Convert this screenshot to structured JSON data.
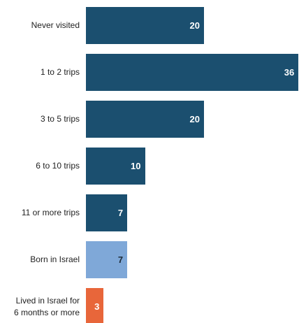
{
  "chart_data": {
    "type": "bar",
    "orientation": "horizontal",
    "categories": [
      "Never visited",
      "1 to 2 trips",
      "3 to 5 trips",
      "6 to 10 trips",
      "11 or more trips",
      "Born in Israel",
      "Lived in Israel for\n6 months or more"
    ],
    "values": [
      20,
      36,
      20,
      10,
      7,
      7,
      3
    ],
    "colors": [
      "#1b4f6f",
      "#1b4f6f",
      "#1b4f6f",
      "#1b4f6f",
      "#1b4f6f",
      "#7fa8d8",
      "#e8663a"
    ],
    "value_label_colors": [
      "#ffffff",
      "#ffffff",
      "#ffffff",
      "#ffffff",
      "#ffffff",
      "#1d2b38",
      "#ffffff"
    ]
  }
}
